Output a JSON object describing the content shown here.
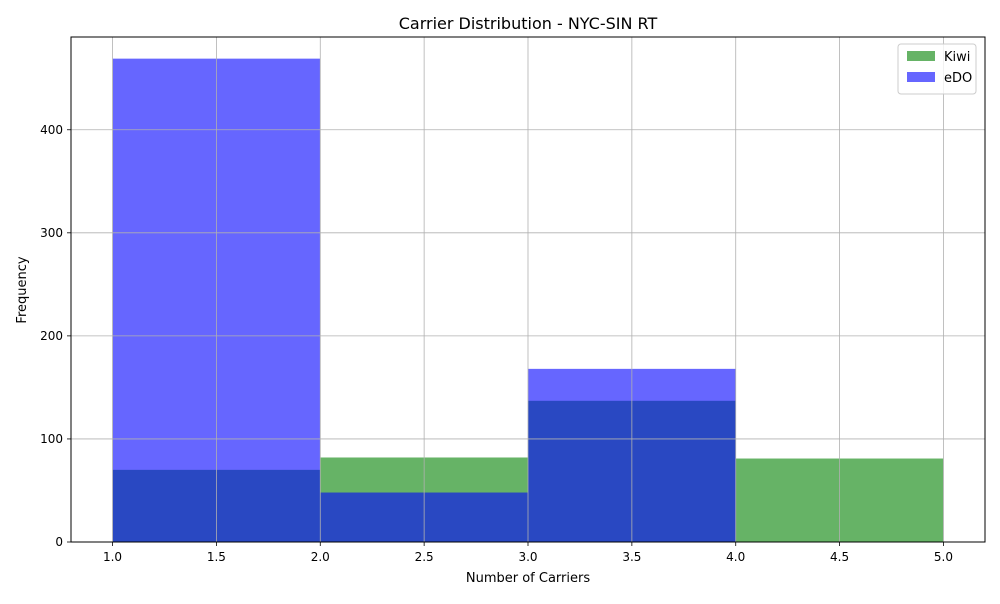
{
  "chart_data": {
    "type": "bar",
    "title": "Carrier Distribution - NYC-SIN RT",
    "xlabel": "Number of Carriers",
    "ylabel": "Frequency",
    "xlim": [
      0.8,
      5.2
    ],
    "ylim": [
      0,
      490
    ],
    "x_ticks": [
      "1.0",
      "1.5",
      "2.0",
      "2.5",
      "3.0",
      "3.5",
      "4.0",
      "4.5",
      "5.0"
    ],
    "y_ticks": [
      "0",
      "100",
      "200",
      "300",
      "400"
    ],
    "grid": true,
    "legend_position": "top-right",
    "bins": [
      [
        1,
        2
      ],
      [
        2,
        3
      ],
      [
        3,
        4
      ],
      [
        4,
        5
      ]
    ],
    "series": [
      {
        "name": "Kiwi",
        "values": [
          70,
          82,
          137,
          81
        ],
        "color": "#008000",
        "alpha": 0.6
      },
      {
        "name": "eDO",
        "values": [
          469,
          48,
          168,
          0
        ],
        "color": "#0000ff",
        "alpha": 0.6
      }
    ]
  }
}
